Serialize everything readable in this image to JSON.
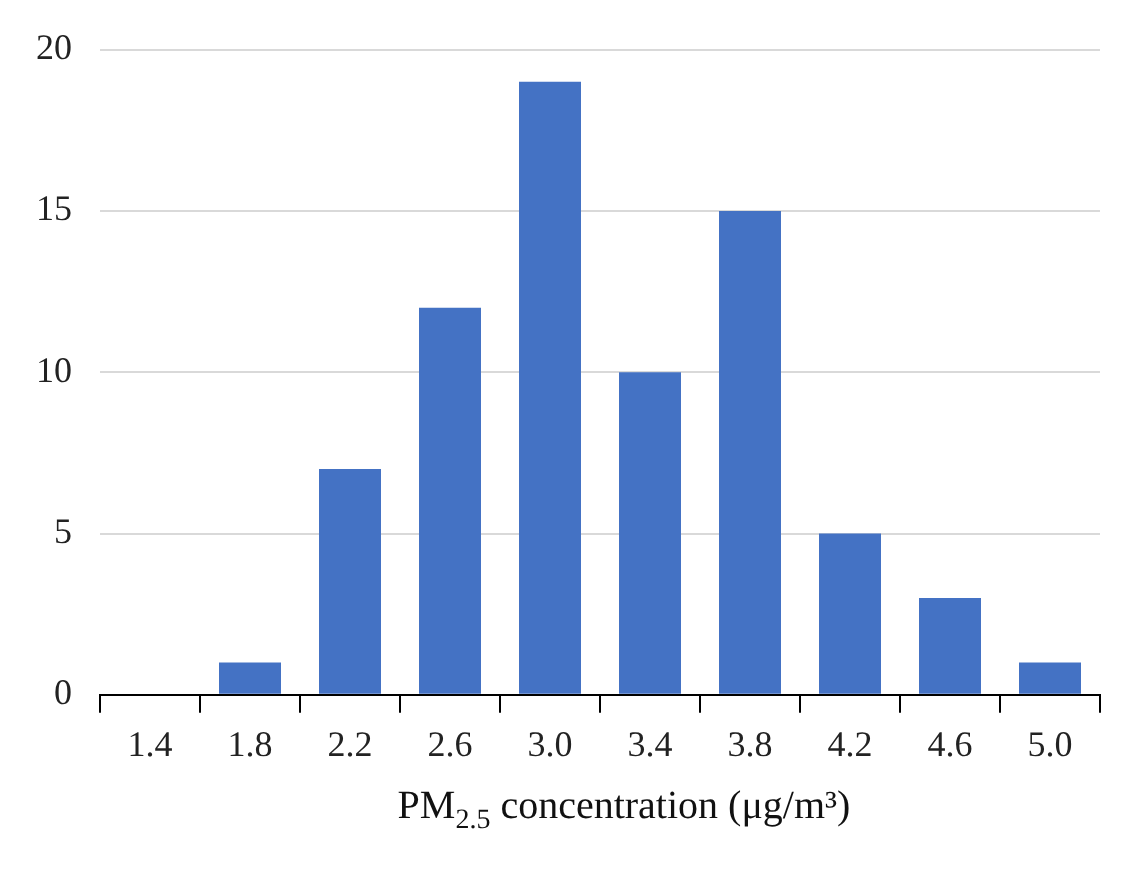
{
  "chart_data": {
    "type": "bar",
    "xlabel": "PM$_{2.5}$ concentration (μg/m³)",
    "categories": [
      "1.4",
      "1.8",
      "2.2",
      "2.6",
      "3.0",
      "3.4",
      "3.8",
      "4.2",
      "4.6",
      "5.0"
    ],
    "values": [
      0,
      1,
      7,
      12,
      19,
      10,
      15,
      5,
      3,
      1
    ],
    "color": "#4472c4",
    "ylim": [
      0,
      20
    ],
    "yticks": [
      0,
      5,
      10,
      15,
      20
    ],
    "grid": "y"
  }
}
